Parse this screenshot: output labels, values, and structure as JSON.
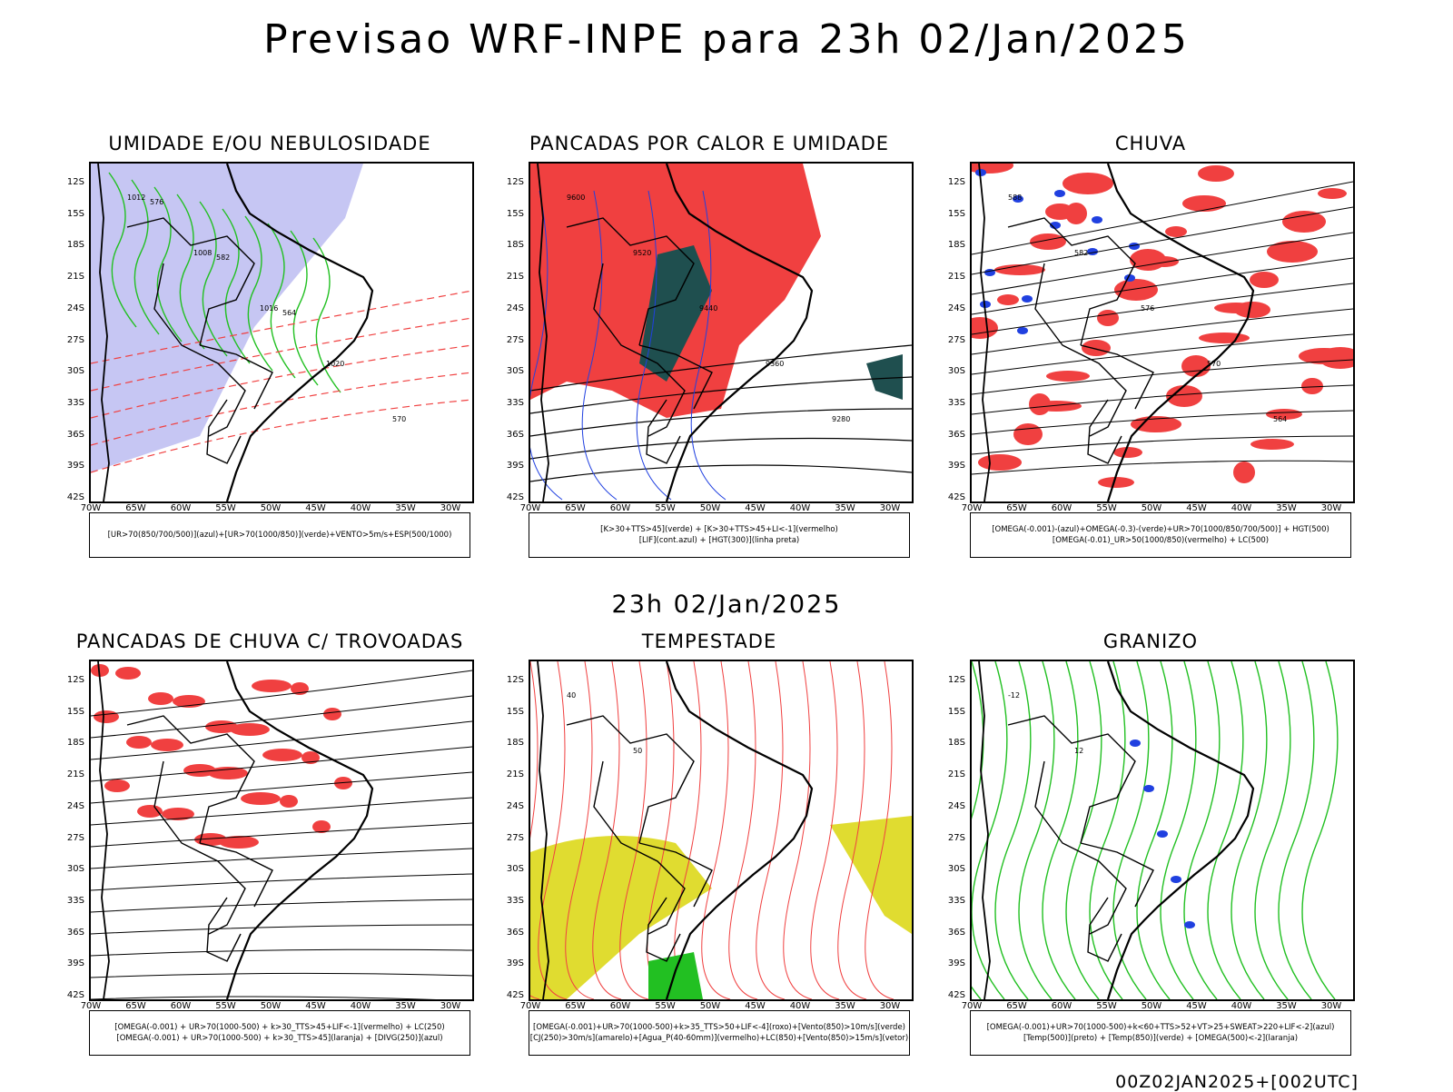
{
  "header": {
    "title": "Previsao WRF-INPE  para 23h 02/Jan/2025"
  },
  "middle": {
    "time_label": "23h 02/Jan/2025"
  },
  "footer": {
    "code": "00Z02JAN2025+[002UTC]"
  },
  "axes": {
    "lat_labels": [
      "12S",
      "15S",
      "18S",
      "21S",
      "24S",
      "27S",
      "30S",
      "33S",
      "36S",
      "39S",
      "42S"
    ],
    "lon_labels": [
      "70W",
      "65W",
      "60W",
      "55W",
      "50W",
      "45W",
      "40W",
      "35W",
      "30W"
    ]
  },
  "panels": [
    {
      "title": "UMIDADE E/OU NEBULOSIDADE",
      "legend": [
        "[UR>70(850/700/500)](azul)+[UR>70(1000/850)](verde)+VENTO>5m/s+ESP(500/1000)"
      ],
      "contour_labels": [
        "1012",
        "1008",
        "1016",
        "1020",
        "570",
        "576",
        "582",
        "564"
      ]
    },
    {
      "title": "PANCADAS POR CALOR E UMIDADE",
      "legend": [
        "[K>30+TTS>45](verde)  +  [K>30+TTS>45+LI<-1](vermelho)",
        "[LIF](cont.azul)  +  [HGT(300)](linha preta)"
      ],
      "contour_labels": [
        "9600",
        "9520",
        "9440",
        "9360",
        "9280"
      ]
    },
    {
      "title": "CHUVA",
      "legend": [
        "[OMEGA(-0.001)-(azul)+OMEGA(-0.3)-(verde)+UR>70(1000/850/700/500)]  +  HGT(500)",
        "[OMEGA(-0.01)_UR>50(1000/850)(vermelho)  +  LC(500)"
      ],
      "contour_labels": [
        "588",
        "582",
        "576",
        "570",
        "564"
      ]
    },
    {
      "title": "PANCADAS DE CHUVA C/ TROVOADAS",
      "legend": [
        "[OMEGA(-0.001)  +  UR>70(1000-500)  +  k>30_TTS>45+LIF<-1](vermelho)  +  LC(250)",
        "[OMEGA(-0.001)  +  UR>70(1000-500)  +  k>30_TTS>45](laranja)  +  [DIVG(250)](azul)"
      ],
      "contour_labels": []
    },
    {
      "title": "TEMPESTADE",
      "legend": [
        "[OMEGA(-0.001)+UR>70(1000-500)+k>35_TTS>50+LIF<-4](roxo)+[Vento(850)>10m/s](verde)",
        "[CJ(250)>30m/s](amarelo)+[Agua_P(40-60mm)](vermelho)+LC(850)+[Vento(850)>15m/s](vetor)"
      ],
      "contour_labels": [
        "40",
        "50"
      ]
    },
    {
      "title": "GRANIZO",
      "legend": [
        "[OMEGA(-0.001)+UR>70(1000-500)+k<60+TTS>52+VT>25+SWEAT>220+LIF<-2](azul)",
        "[Temp(500)](preto)  +  [Temp(850)](verde)  +  [OMEGA(500)<-2](laranja)"
      ],
      "contour_labels": [
        "-12",
        "12"
      ]
    }
  ],
  "colors": {
    "blue_shade": "#b8b8f0",
    "green_line": "#22c022",
    "red_line": "#f04040",
    "red_fill": "#f04040",
    "dark_green": "#1f4f4f",
    "yellow_fill": "#e0dc30",
    "blue_pixel": "#2040e0",
    "orange_pixel": "#f08020"
  }
}
